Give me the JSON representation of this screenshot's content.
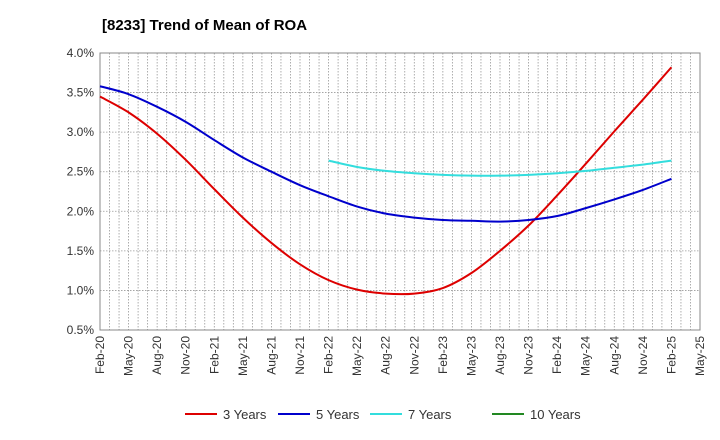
{
  "chart_data": {
    "type": "line",
    "title": "[8233]  Trend of Mean of ROA",
    "xlabel": "",
    "ylabel": "",
    "ylim": [
      0.5,
      4.0
    ],
    "y_ticks": [
      "0.5%",
      "1.0%",
      "1.5%",
      "2.0%",
      "2.5%",
      "3.0%",
      "3.5%",
      "4.0%"
    ],
    "y_tick_values": [
      0.5,
      1.0,
      1.5,
      2.0,
      2.5,
      3.0,
      3.5,
      4.0
    ],
    "x_ticks": [
      "Feb-20",
      "May-20",
      "Aug-20",
      "Nov-20",
      "Feb-21",
      "May-21",
      "Aug-21",
      "Nov-21",
      "Feb-22",
      "May-22",
      "Aug-22",
      "Nov-22",
      "Feb-23",
      "May-23",
      "Aug-23",
      "Nov-23",
      "Feb-24",
      "May-24",
      "Aug-24",
      "Nov-24",
      "Feb-25",
      "May-25"
    ],
    "x_range_months": [
      0,
      63
    ],
    "grid": true,
    "legend_position": "bottom",
    "series": [
      {
        "name": "3 Years",
        "color": "#dd0000",
        "x_months": [
          0,
          3,
          6,
          9,
          12,
          15,
          18,
          21,
          24,
          27,
          30,
          33,
          36,
          39,
          42,
          45,
          48,
          51,
          54,
          57,
          60
        ],
        "values": [
          3.45,
          3.25,
          2.98,
          2.65,
          2.28,
          1.92,
          1.6,
          1.33,
          1.13,
          1.01,
          0.96,
          0.96,
          1.03,
          1.22,
          1.5,
          1.82,
          2.2,
          2.6,
          3.01,
          3.41,
          3.82
        ]
      },
      {
        "name": "5 Years",
        "color": "#0000cc",
        "x_months": [
          0,
          3,
          6,
          9,
          12,
          15,
          18,
          21,
          24,
          27,
          30,
          33,
          36,
          39,
          42,
          45,
          48,
          51,
          54,
          57,
          60
        ],
        "values": [
          3.58,
          3.48,
          3.32,
          3.13,
          2.9,
          2.68,
          2.5,
          2.33,
          2.19,
          2.06,
          1.97,
          1.92,
          1.89,
          1.88,
          1.87,
          1.89,
          1.94,
          2.04,
          2.15,
          2.27,
          2.41
        ]
      },
      {
        "name": "7 Years",
        "color": "#33dddd",
        "x_months": [
          24,
          27,
          30,
          33,
          36,
          39,
          42,
          45,
          48,
          51,
          54,
          57,
          60
        ],
        "values": [
          2.64,
          2.56,
          2.51,
          2.48,
          2.46,
          2.45,
          2.45,
          2.46,
          2.48,
          2.51,
          2.55,
          2.59,
          2.64
        ]
      },
      {
        "name": "10 Years",
        "color": "#228822",
        "x_months": [],
        "values": []
      }
    ]
  }
}
